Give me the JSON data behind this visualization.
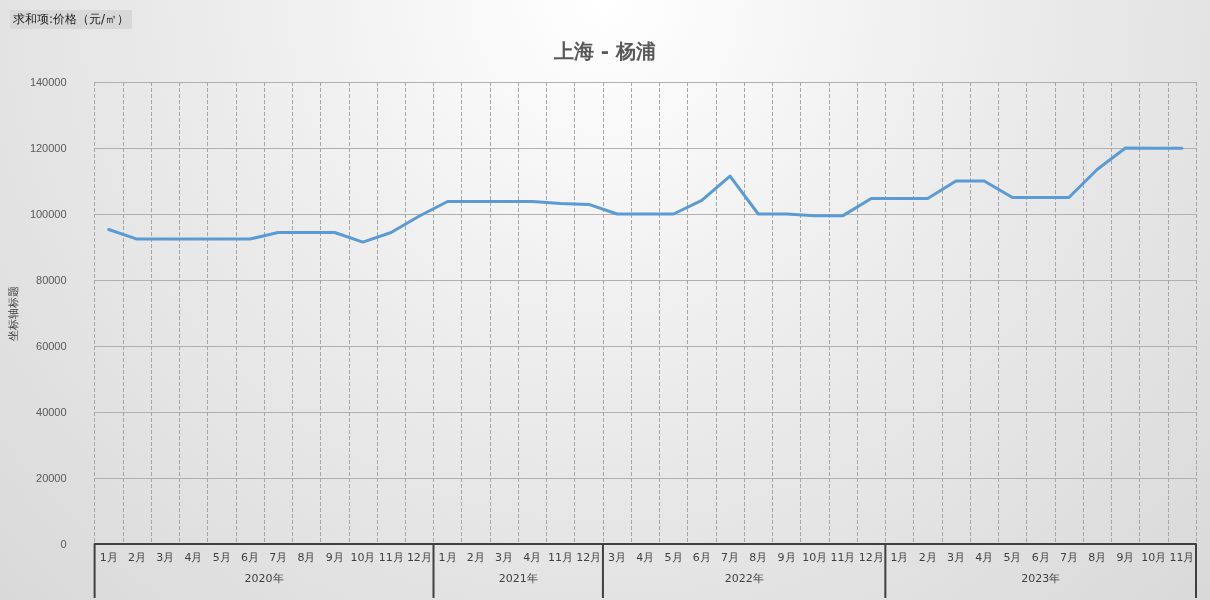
{
  "chart_data": {
    "type": "line",
    "title": "上海 - 杨浦",
    "ylabel": "坐标轴标题",
    "annotations": [
      "求和项:价格（元/㎡）",
      "2020年",
      "2021年",
      "2022年",
      "2023年"
    ],
    "categories": [
      "1月",
      "2月",
      "3月",
      "4月",
      "5月",
      "6月",
      "7月",
      "8月",
      "9月",
      "10月",
      "11月",
      "12月",
      "1月",
      "2月",
      "3月",
      "4月",
      "11月",
      "12月",
      "3月",
      "4月",
      "5月",
      "6月",
      "7月",
      "8月",
      "9月",
      "10月",
      "11月",
      "12月",
      "1月",
      "2月",
      "3月",
      "4月",
      "5月",
      "6月",
      "7月",
      "8月",
      "9月",
      "10月",
      "11月"
    ],
    "series": [
      {
        "color": "#5b9bd5",
        "values": [
          95300,
          92400,
          92400,
          92400,
          92400,
          92400,
          94400,
          94400,
          94400,
          91500,
          94400,
          99400,
          103800,
          103800,
          103800,
          103800,
          103200,
          102900,
          100000,
          100000,
          100000,
          104100,
          111500,
          100000,
          100000,
          99500,
          99500,
          104700,
          104700,
          104700,
          110000,
          110000,
          105000,
          105000,
          105000,
          113500,
          120000,
          119900,
          119900
        ]
      }
    ],
    "ylim": [
      0,
      140000
    ],
    "yticks": [
      0,
      20000,
      40000,
      60000,
      80000,
      100000,
      120000,
      140000
    ],
    "grid": true,
    "marker": "none",
    "line_style": "solid"
  }
}
